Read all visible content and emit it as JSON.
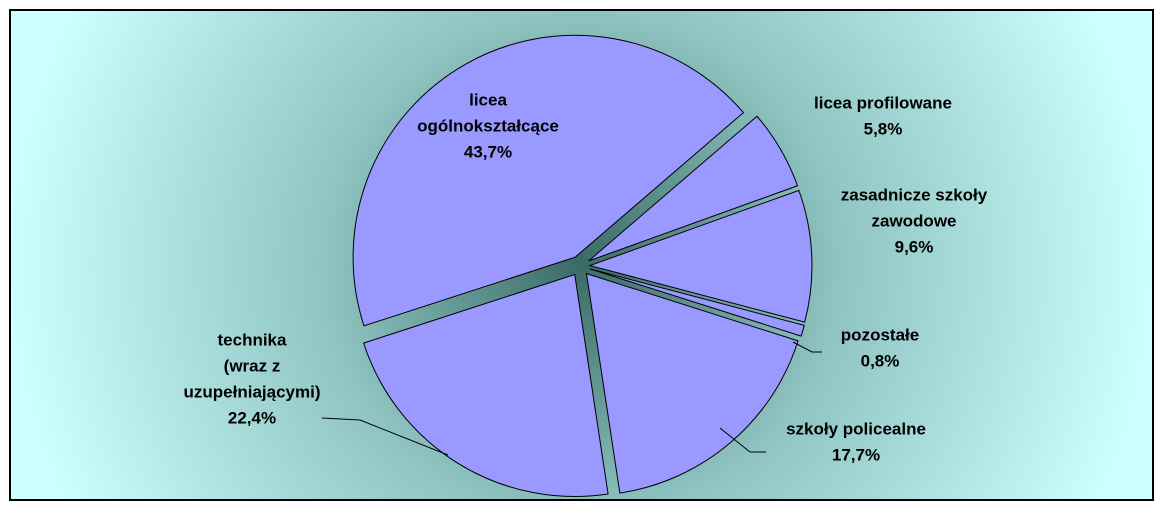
{
  "chart_data": {
    "type": "pie",
    "categories": [
      [
        "licea",
        "ogólnokształcące"
      ],
      [
        "licea profilowane"
      ],
      [
        "zasadnicze szkoły",
        "zawodowe"
      ],
      [
        "pozostałe"
      ],
      [
        "szkoły policealne"
      ],
      [
        "technika",
        "(wraz z",
        "uzupełniającymi)"
      ]
    ],
    "values": [
      43.7,
      5.8,
      9.6,
      0.8,
      17.7,
      22.4
    ],
    "value_labels": [
      "43,7%",
      "5,8%",
      "9,6%",
      "0,8%",
      "17,7%",
      "22,4%"
    ],
    "color": "#9999ff"
  }
}
